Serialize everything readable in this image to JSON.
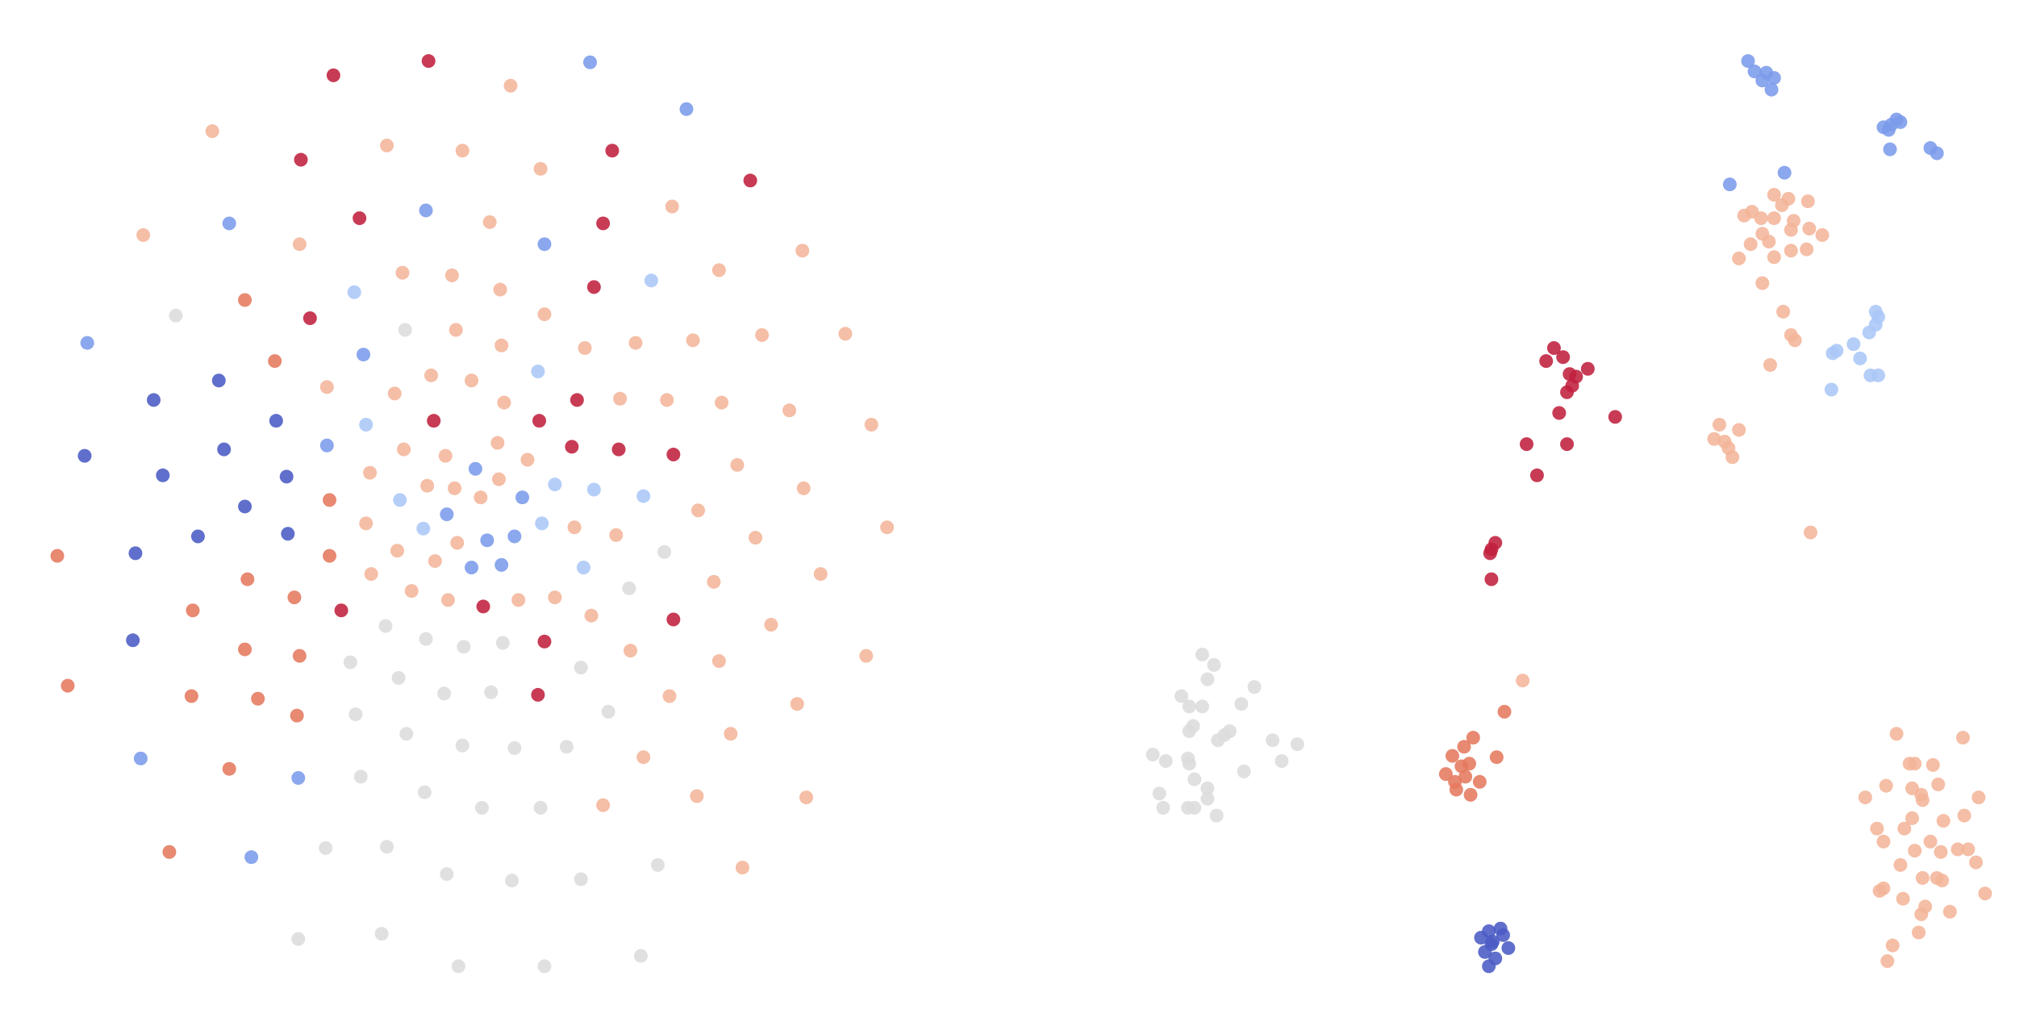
{
  "chart_data": {
    "type": "scatter",
    "xlim": [
      0,
      1560
    ],
    "ylim": [
      790,
      0
    ],
    "series": [
      {
        "color": "#c0203d",
        "x": [
          256,
          329,
          231,
          470,
          576,
          276,
          463,
          238,
          456,
          443,
          333,
          414,
          439,
          475,
          517,
          371,
          262,
          418,
          517,
          413,
          1193,
          1187,
          1200,
          1219,
          1205,
          1210,
          1207,
          1203,
          1240,
          1197,
          1172,
          1203,
          1180,
          1148,
          1145,
          1144,
          1145
        ],
        "values": [
          58,
          47,
          123,
          116,
          139,
          168,
          172,
          245,
          221,
          308,
          324,
          324,
          344,
          346,
          350,
          467,
          470,
          494,
          477,
          535,
          268,
          278,
          275,
          284,
          288,
          290,
          297,
          302,
          321,
          318,
          342,
          342,
          366,
          418,
          423,
          426,
          446
        ]
      },
      {
        "color": "#7b9bea",
        "x": [
          453,
          527,
          327,
          176,
          418,
          67,
          279,
          251,
          365,
          401,
          343,
          374,
          395,
          362,
          385,
          108,
          229,
          193,
          1342,
          1347,
          1356,
          1353,
          1362,
          1360,
          1446,
          1452,
          1456,
          1450,
          1459,
          1451,
          1482,
          1487,
          1370,
          1328
        ],
        "values": [
          48,
          84,
          162,
          172,
          188,
          264,
          273,
          343,
          361,
          383,
          396,
          416,
          413,
          437,
          435,
          584,
          599,
          660,
          47,
          55,
          56,
          62,
          60,
          69,
          98,
          96,
          92,
          100,
          94,
          115,
          114,
          118,
          133,
          142
        ]
      },
      {
        "color": "#aac7f7",
        "x": [
          500,
          272,
          413,
          281,
          426,
          456,
          494,
          307,
          325,
          416,
          448,
          1440,
          1442,
          1440,
          1435,
          1423,
          1410,
          1407,
          1428,
          1436,
          1442,
          1406
        ],
        "values": [
          216,
          225,
          286,
          327,
          373,
          377,
          382,
          385,
          407,
          403,
          437,
          240,
          244,
          250,
          256,
          265,
          270,
          272,
          276,
          289,
          289,
          300
        ]
      },
      {
        "color": "#4a5bc4",
        "x": [
          118,
          168,
          212,
          65,
          172,
          125,
          220,
          188,
          152,
          221,
          104,
          102,
          1143,
          1152,
          1137,
          1154,
          1145,
          1158,
          1140,
          1148,
          1143,
          1146
        ],
        "values": [
          308,
          293,
          324,
          351,
          346,
          366,
          367,
          390,
          413,
          411,
          426,
          493,
          717,
          715,
          722,
          720,
          727,
          730,
          733,
          738,
          744,
          725
        ]
      },
      {
        "color": "#e5795f",
        "x": [
          188,
          211,
          253,
          253,
          190,
          226,
          148,
          44,
          188,
          230,
          52,
          147,
          198,
          228,
          176,
          130,
          1155,
          1131,
          1124,
          1115,
          1128,
          1149,
          1110,
          1117,
          1125,
          1136,
          1118,
          1129,
          1122
        ],
        "values": [
          231,
          278,
          385,
          428,
          446,
          460,
          470,
          428,
          500,
          505,
          528,
          536,
          538,
          551,
          592,
          656,
          548,
          568,
          575,
          582,
          588,
          583,
          596,
          602,
          598,
          602,
          608,
          612,
          590
        ]
      },
      {
        "color": "#dcdcdc",
        "x": [
          135,
          311,
          510,
          483,
          296,
          327,
          356,
          386,
          446,
          269,
          306,
          341,
          377,
          467,
          273,
          312,
          355,
          395,
          435,
          277,
          326,
          370,
          415,
          250,
          297,
          343,
          393,
          446,
          505,
          229,
          293,
          352,
          418,
          492,
          923,
          932,
          927,
          963,
          907,
          913,
          923,
          953,
          913,
          916,
          935,
          940,
          944,
          977,
          996,
          885,
          895,
          912,
          913,
          984,
          955,
          917,
          890,
          927,
          927,
          893,
          912,
          917,
          934
        ],
        "values": [
          243,
          254,
          425,
          453,
          482,
          492,
          498,
          495,
          514,
          510,
          522,
          534,
          533,
          548,
          550,
          565,
          574,
          576,
          575,
          598,
          610,
          622,
          622,
          653,
          652,
          673,
          678,
          677,
          666,
          723,
          719,
          744,
          744,
          736,
          504,
          512,
          523,
          529,
          536,
          544,
          544,
          542,
          563,
          559,
          570,
          566,
          563,
          570,
          573,
          581,
          586,
          584,
          588,
          586,
          594,
          600,
          611,
          607,
          615,
          622,
          622,
          622,
          628
        ]
      },
      {
        "color": "#f4b59a",
        "x": [
          392,
          163,
          297,
          355,
          415,
          110,
          230,
          516,
          376,
          616,
          309,
          347,
          384,
          552,
          418,
          649,
          350,
          385,
          449,
          488,
          532,
          585,
          251,
          303,
          331,
          362,
          387,
          476,
          512,
          554,
          606,
          669,
          310,
          342,
          382,
          405,
          284,
          328,
          349,
          369,
          383,
          566,
          617,
          281,
          305,
          334,
          351,
          441,
          473,
          536,
          580,
          681,
          285,
          316,
          344,
          398,
          426,
          454,
          548,
          630,
          592,
          484,
          552,
          665,
          514,
          612,
          561,
          494,
          463,
          535,
          619,
          570,
          1362,
          1388,
          1339,
          1368,
          1373,
          1345,
          1352,
          1362,
          1377,
          1389,
          1399,
          1353,
          1375,
          1344,
          1358,
          1387,
          1375,
          1335,
          1362,
          1353,
          1369,
          1375,
          1378,
          1359,
          1320,
          1335,
          1316,
          1324,
          1327,
          1330,
          1390,
          1169,
          1456,
          1507,
          1466,
          1470,
          1484,
          1448,
          1468,
          1475,
          1488,
          1432,
          1476,
          1519,
          1508,
          1468,
          1492,
          1441,
          1462,
          1446,
          1482,
          1470,
          1511,
          1503,
          1490,
          1517,
          1459,
          1476,
          1487,
          1491,
          1446,
          1443,
          1461,
          1524,
          1478,
          1497,
          1475,
          1473,
          1453,
          1449
        ],
        "values": [
          66,
          101,
          112,
          116,
          130,
          181,
          188,
          159,
          171,
          193,
          210,
          212,
          223,
          208,
          242,
          257,
          254,
          266,
          268,
          264,
          262,
          258,
          298,
          303,
          289,
          293,
          310,
          307,
          308,
          310,
          316,
          327,
          346,
          351,
          341,
          354,
          364,
          374,
          376,
          383,
          369,
          358,
          376,
          403,
          424,
          432,
          418,
          406,
          412,
          393,
          414,
          406,
          442,
          455,
          462,
          462,
          460,
          474,
          448,
          442,
          481,
          501,
          509,
          505,
          536,
          542,
          565,
          583,
          620,
          613,
          614,
          668,
          150,
          155,
          166,
          158,
          153,
          163,
          168,
          168,
          170,
          176,
          181,
          180,
          177,
          188,
          186,
          192,
          193,
          199,
          198,
          218,
          240,
          258,
          262,
          281,
          327,
          331,
          338,
          340,
          345,
          352,
          410,
          524,
          565,
          568,
          588,
          588,
          589,
          605,
          607,
          612,
          604,
          614,
          616,
          614,
          628,
          630,
          632,
          638,
          638,
          648,
          648,
          655,
          654,
          654,
          656,
          664,
          666,
          676,
          676,
          678,
          684,
          686,
          692,
          688,
          698,
          702,
          704,
          718,
          728,
          740
        ]
      }
    ]
  }
}
